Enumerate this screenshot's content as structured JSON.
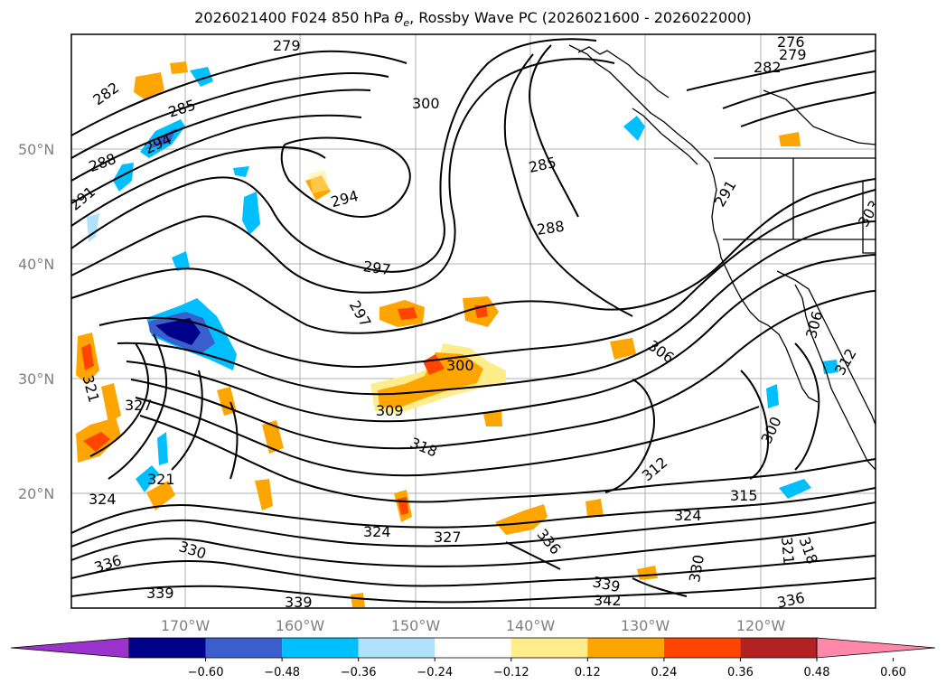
{
  "title_prefix": "2026021400 F024 850 hPa ",
  "title_theta": "θ",
  "title_sub": "e",
  "title_suffix": ", Rossby Wave PC (2026021600 - 2026022000)",
  "lat_labels": [
    "50°N",
    "40°N",
    "30°N",
    "20°N"
  ],
  "lon_labels": [
    "170°W",
    "160°W",
    "150°W",
    "140°W",
    "130°W",
    "120°W"
  ],
  "contour_labels": [
    "279",
    "276",
    "279",
    "282",
    "282",
    "285",
    "288",
    "291",
    "294",
    "294",
    "300",
    "285",
    "288",
    "291",
    "297",
    "297",
    "300",
    "306",
    "309",
    "306",
    "300",
    "312",
    "318",
    "321",
    "327",
    "321",
    "324",
    "315",
    "324",
    "330",
    "336",
    "339",
    "336",
    "330",
    "324",
    "327",
    "339",
    "342",
    "339",
    "336",
    "318",
    "321",
    "312",
    "303"
  ],
  "colorbar": {
    "ticks": [
      "−0.60",
      "−0.48",
      "−0.36",
      "−0.24",
      "−0.12",
      "0.12",
      "0.24",
      "0.36",
      "0.48",
      "0.60"
    ],
    "colors": [
      "#9933cc",
      "#00008b",
      "#3a5fcd",
      "#00bfff",
      "#b0e2ff",
      "#ffffff",
      "#ffec8b",
      "#ffa500",
      "#ff4500",
      "#b22222",
      "#ff88aa"
    ]
  }
}
